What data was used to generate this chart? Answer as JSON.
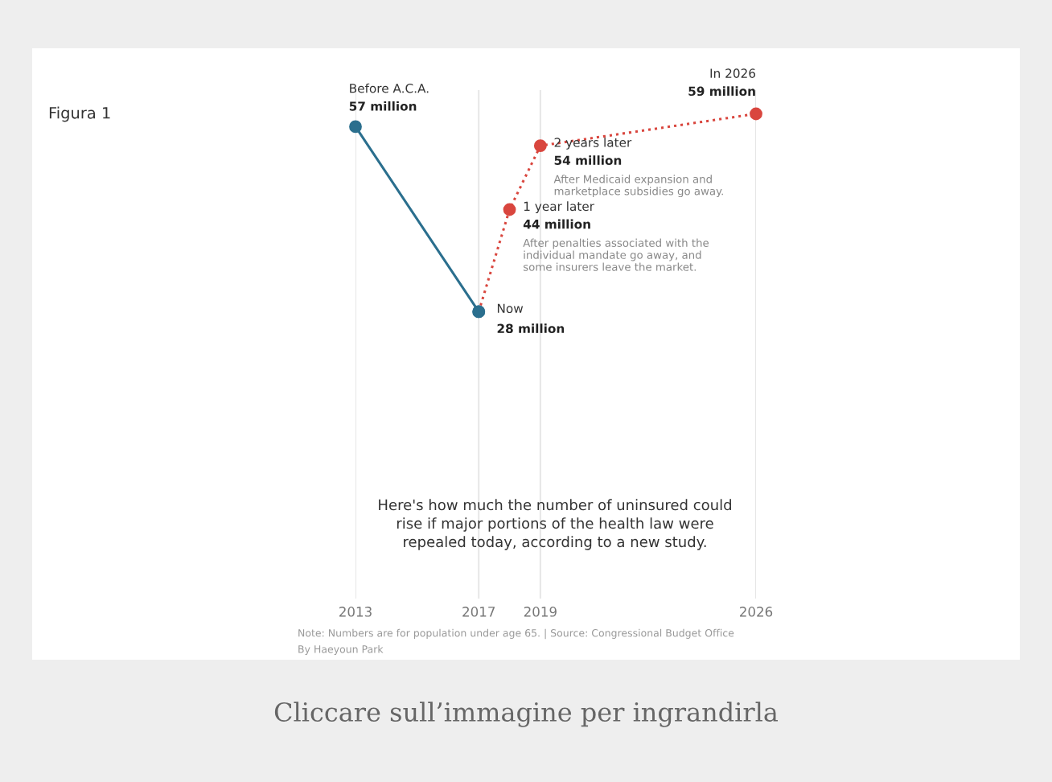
{
  "chart_data": {
    "type": "line",
    "title": "Figura 1",
    "xlim": [
      2013,
      2026
    ],
    "xticks": [
      2013,
      2017,
      2019,
      2026
    ],
    "tick_labels": "x",
    "grid": "x",
    "marker": "circle",
    "series": [
      {
        "type": "line",
        "color": "#2b6f8e",
        "line_style": "solid",
        "x": [
          2013,
          2017
        ],
        "values": [
          57,
          28
        ],
        "colors": [
          "#2b6f8e",
          "#2b6f8e"
        ],
        "value_labels": [
          "57 million",
          "28 million"
        ]
      },
      {
        "type": "line",
        "color": "#d9463e",
        "line_style": "dotted",
        "x": [
          2017,
          2018,
          2019,
          2026
        ],
        "values": [
          28,
          44,
          54,
          59
        ],
        "colors": [
          "#2b6f8e",
          "#d9463e",
          "#d9463e",
          "#d9463e"
        ],
        "value_labels": [
          null,
          "44 million",
          "54 million",
          "59 million"
        ]
      }
    ],
    "annotations": [
      {
        "text": "Before A.C.A.",
        "x": 2013,
        "y": 57
      },
      {
        "text": "Now",
        "x": 2017,
        "y": 28
      },
      {
        "text": "1 year later",
        "x": 2018,
        "y": 44
      },
      {
        "text": "After penalties associated with the\nindividual mandate go away, and\nsome insurers leave the market.",
        "x": 2018,
        "y": 44
      },
      {
        "text": "2 years later",
        "x": 2019,
        "y": 54
      },
      {
        "text": "After Medicaid expansion and\nmarketplace subsidies go away.",
        "x": 2019,
        "y": 54
      },
      {
        "text": "In 2026",
        "x": 2026,
        "y": 59
      },
      "Here's how much the number of uninsured could\nrise if major portions of the health law were\nrepealed today, according to a new study.",
      "Note: Numbers are for population under age 65. | Source: Congressional Budget Office",
      "By Haeyoun Park",
      "Cliccare sull’immagine per ingrandirla"
    ]
  }
}
